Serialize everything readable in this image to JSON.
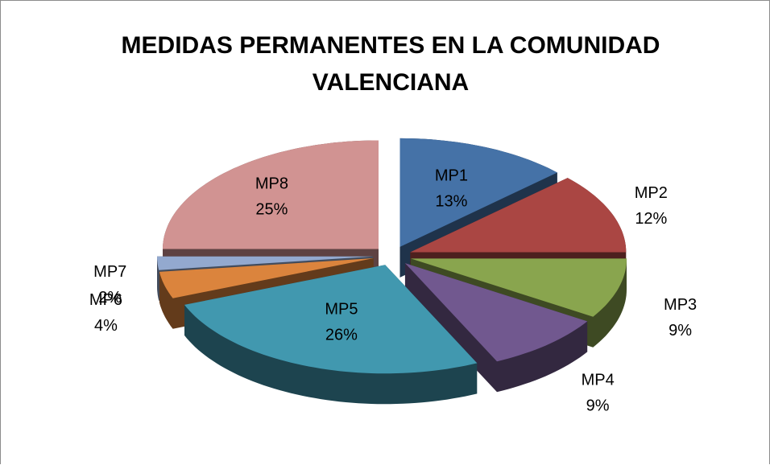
{
  "chart_data": {
    "type": "pie",
    "title": "MEDIDAS PERMANENTES EN LA COMUNIDAD VALENCIANA",
    "categories": [
      "MP1",
      "MP2",
      "MP3",
      "MP4",
      "MP5",
      "MP6",
      "MP7",
      "MP8"
    ],
    "values": [
      13,
      12,
      9,
      9,
      26,
      4,
      2,
      25
    ],
    "value_labels": [
      "13%",
      "12%",
      "9%",
      "9%",
      "26%",
      "4%",
      "2%",
      "25%"
    ],
    "colors": [
      "#4572a7",
      "#aa4643",
      "#89a54e",
      "#71588f",
      "#4198af",
      "#db843d",
      "#93a9cf",
      "#d19392"
    ]
  }
}
